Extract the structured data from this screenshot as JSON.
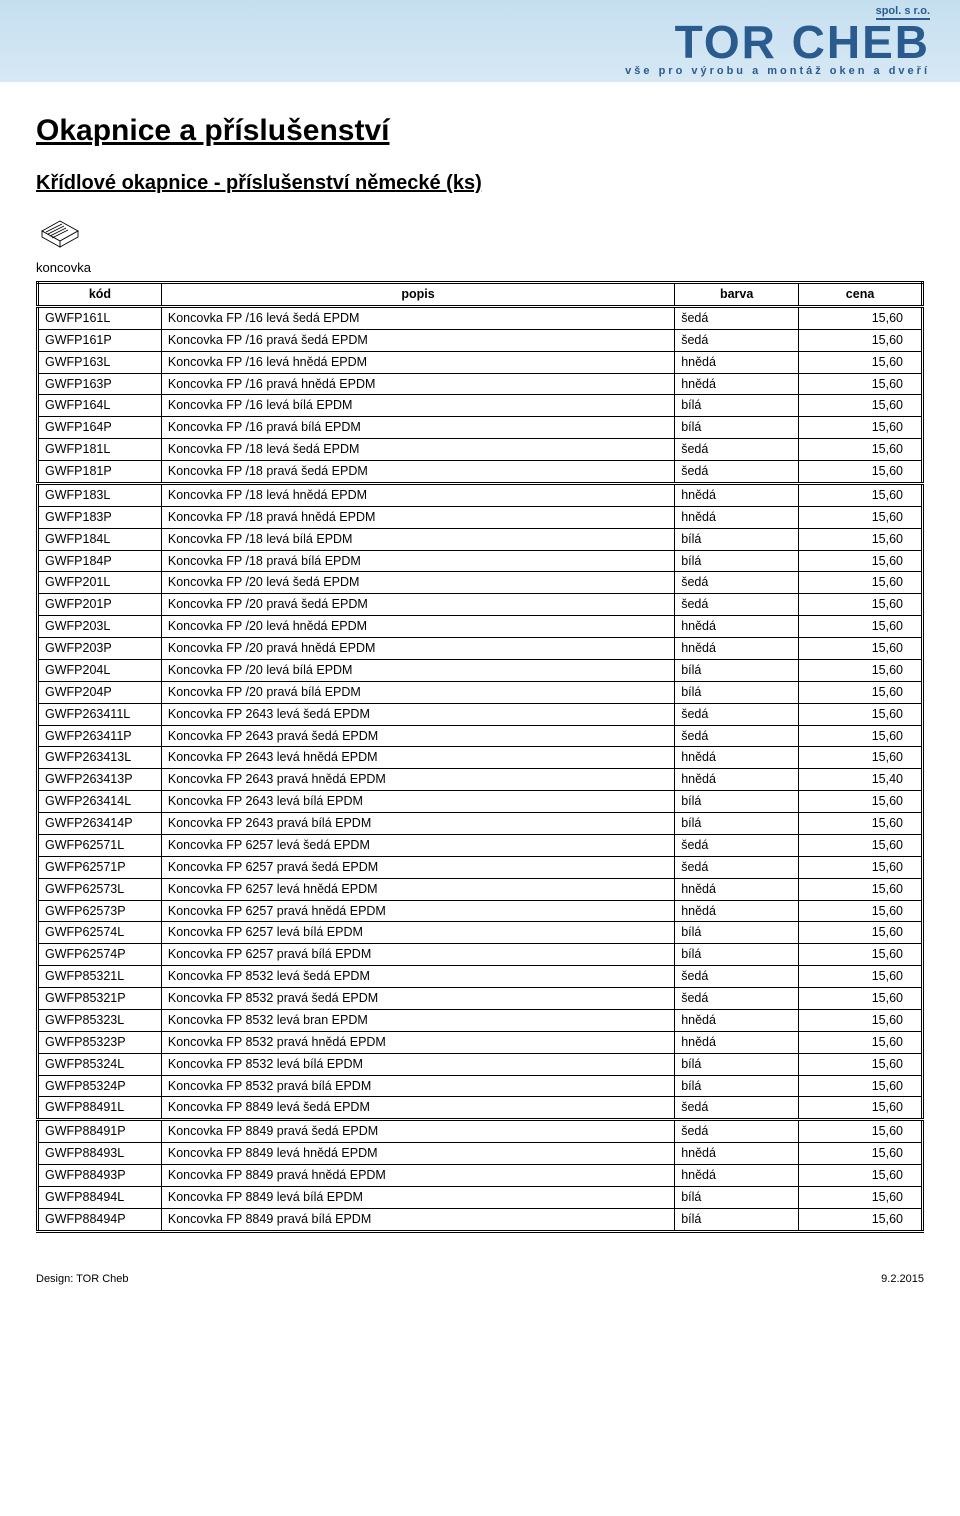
{
  "banner": {
    "spol": "spol. s r.o.",
    "name": "TOR CHEB",
    "tagline": "vše  pro  výrobu  a  montáž  oken  a  dveří"
  },
  "title": "Okapnice a příslušenství",
  "subtitle": "Křídlové okapnice - příslušenství německé (ks)",
  "sectionLabel": "koncovka",
  "headers": {
    "kod": "kód",
    "popis": "popis",
    "barva": "barva",
    "cena": "cena"
  },
  "groups": [
    [
      {
        "kod": "GWFP161L",
        "popis": "Koncovka FP /16 levá šedá EPDM",
        "barva": "šedá",
        "cena": "15,60"
      },
      {
        "kod": "GWFP161P",
        "popis": "Koncovka FP /16 pravá šedá EPDM",
        "barva": "šedá",
        "cena": "15,60"
      },
      {
        "kod": "GWFP163L",
        "popis": "Koncovka FP /16 levá hnědá EPDM",
        "barva": "hnědá",
        "cena": "15,60"
      },
      {
        "kod": "GWFP163P",
        "popis": "Koncovka FP /16 pravá hnědá EPDM",
        "barva": "hnědá",
        "cena": "15,60"
      },
      {
        "kod": "GWFP164L",
        "popis": "Koncovka FP /16 levá bílá  EPDM",
        "barva": "bílá",
        "cena": "15,60"
      },
      {
        "kod": "GWFP164P",
        "popis": "Koncovka FP /16 pravá bílá  EPDM",
        "barva": "bílá",
        "cena": "15,60"
      },
      {
        "kod": "GWFP181L",
        "popis": "Koncovka FP /18 levá šedá  EPDM",
        "barva": "šedá",
        "cena": "15,60"
      },
      {
        "kod": "GWFP181P",
        "popis": "Koncovka FP /18 pravá šedá EPDM",
        "barva": "šedá",
        "cena": "15,60"
      }
    ],
    [
      {
        "kod": "GWFP183L",
        "popis": "Koncovka FP /18 levá hnědá  EPDM",
        "barva": "hnědá",
        "cena": "15,60"
      },
      {
        "kod": "GWFP183P",
        "popis": "Koncovka FP /18 pravá hnědá EPDM",
        "barva": "hnědá",
        "cena": "15,60"
      },
      {
        "kod": "GWFP184L",
        "popis": "Koncovka FP /18 levá bílá EPDM",
        "barva": "bílá",
        "cena": "15,60"
      },
      {
        "kod": "GWFP184P",
        "popis": "Koncovka FP /18 pravá bílá EPDM",
        "barva": "bílá",
        "cena": "15,60"
      },
      {
        "kod": "GWFP201L",
        "popis": "Koncovka FP /20 levá šedá EPDM",
        "barva": "šedá",
        "cena": "15,60"
      },
      {
        "kod": "GWFP201P",
        "popis": "Koncovka FP /20 pravá šedá EPDM",
        "barva": "šedá",
        "cena": "15,60"
      },
      {
        "kod": "GWFP203L",
        "popis": "Koncovka FP /20 levá hnědá EPDM",
        "barva": "hnědá",
        "cena": "15,60"
      },
      {
        "kod": "GWFP203P",
        "popis": "Koncovka FP /20 pravá hnědá EPDM",
        "barva": "hnědá",
        "cena": "15,60"
      },
      {
        "kod": "GWFP204L",
        "popis": "Koncovka FP /20 levá bílá EPDM",
        "barva": "bílá",
        "cena": "15,60"
      },
      {
        "kod": "GWFP204P",
        "popis": "Koncovka FP /20 pravá bílá EPDM",
        "barva": "bílá",
        "cena": "15,60"
      },
      {
        "kod": "GWFP263411L",
        "popis": "Koncovka FP 2643 levá šedá EPDM",
        "barva": "šedá",
        "cena": "15,60"
      },
      {
        "kod": "GWFP263411P",
        "popis": "Koncovka FP 2643 pravá šedá EPDM",
        "barva": "šedá",
        "cena": "15,60"
      },
      {
        "kod": "GWFP263413L",
        "popis": "Koncovka FP 2643 levá hnědá EPDM",
        "barva": "hnědá",
        "cena": "15,60"
      },
      {
        "kod": "GWFP263413P",
        "popis": "Koncovka FP 2643 pravá hnědá EPDM",
        "barva": "hnědá",
        "cena": "15,40"
      },
      {
        "kod": "GWFP263414L",
        "popis": "Koncovka FP 2643 levá bílá EPDM",
        "barva": "bílá",
        "cena": "15,60"
      },
      {
        "kod": "GWFP263414P",
        "popis": "Koncovka FP 2643 pravá bílá EPDM",
        "barva": "bílá",
        "cena": "15,60"
      },
      {
        "kod": "GWFP62571L",
        "popis": "Koncovka FP 6257 levá šedá EPDM",
        "barva": "šedá",
        "cena": "15,60"
      },
      {
        "kod": "GWFP62571P",
        "popis": "Koncovka FP 6257 pravá šedá EPDM",
        "barva": "šedá",
        "cena": "15,60"
      },
      {
        "kod": "GWFP62573L",
        "popis": "Koncovka FP 6257 levá hnědá EPDM",
        "barva": "hnědá",
        "cena": "15,60"
      },
      {
        "kod": "GWFP62573P",
        "popis": "Koncovka FP 6257 pravá hnědá EPDM",
        "barva": "hnědá",
        "cena": "15,60"
      },
      {
        "kod": "GWFP62574L",
        "popis": "Koncovka FP 6257 levá bílá EPDM",
        "barva": "bílá",
        "cena": "15,60"
      },
      {
        "kod": "GWFP62574P",
        "popis": "Koncovka FP 6257 pravá bílá EPDM",
        "barva": "bílá",
        "cena": "15,60"
      },
      {
        "kod": "GWFP85321L",
        "popis": "Koncovka FP 8532 levá šedá EPDM",
        "barva": "šedá",
        "cena": "15,60"
      },
      {
        "kod": "GWFP85321P",
        "popis": "Koncovka FP 8532 pravá šedá EPDM",
        "barva": "šedá",
        "cena": "15,60"
      },
      {
        "kod": "GWFP85323L",
        "popis": "Koncovka FP 8532 levá bran EPDM",
        "barva": "hnědá",
        "cena": "15,60"
      },
      {
        "kod": "GWFP85323P",
        "popis": "Koncovka FP 8532 pravá hnědá EPDM",
        "barva": "hnědá",
        "cena": "15,60"
      },
      {
        "kod": "GWFP85324L",
        "popis": "Koncovka FP 8532 levá bílá EPDM",
        "barva": "bílá",
        "cena": "15,60"
      },
      {
        "kod": "GWFP85324P",
        "popis": "Koncovka FP 8532 pravá bílá EPDM",
        "barva": "bílá",
        "cena": "15,60"
      },
      {
        "kod": "GWFP88491L",
        "popis": "Koncovka FP 8849 levá šedá EPDM",
        "barva": "šedá",
        "cena": "15,60"
      }
    ],
    [
      {
        "kod": "GWFP88491P",
        "popis": "Koncovka FP 8849 pravá šedá EPDM",
        "barva": "šedá",
        "cena": "15,60"
      },
      {
        "kod": "GWFP88493L",
        "popis": "Koncovka FP 8849 levá hnědá EPDM",
        "barva": "hnědá",
        "cena": "15,60"
      },
      {
        "kod": "GWFP88493P",
        "popis": "Koncovka FP 8849 pravá hnědá EPDM",
        "barva": "hnědá",
        "cena": "15,60"
      },
      {
        "kod": "GWFP88494L",
        "popis": "Koncovka FP 8849 levá bílá EPDM",
        "barva": "bílá",
        "cena": "15,60"
      },
      {
        "kod": "GWFP88494P",
        "popis": "Koncovka FP 8849 pravá bílá EPDM",
        "barva": "bílá",
        "cena": "15,60"
      }
    ]
  ],
  "footer": {
    "left": "Design: TOR Cheb",
    "right": "9.2.2015"
  }
}
